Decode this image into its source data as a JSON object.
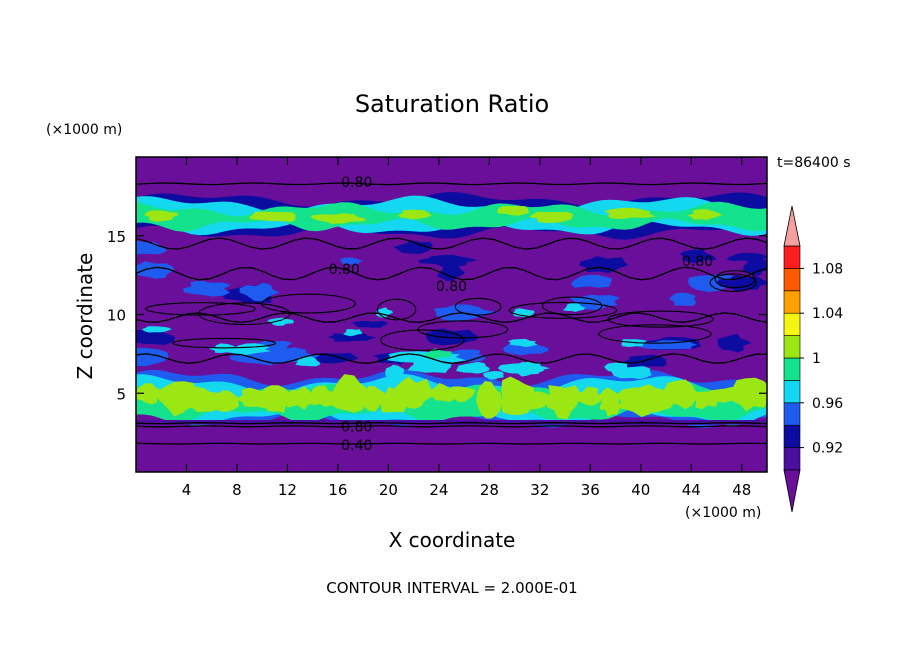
{
  "chart_data": {
    "type": "heatmap",
    "title": "Saturation Ratio",
    "xlabel": "X coordinate",
    "ylabel": "Z coordinate",
    "x_unit": "(×1000 m)",
    "y_unit": "(×1000 m)",
    "time_label": "t=86400 s",
    "footer": "CONTOUR INTERVAL = 2.000E-01",
    "xlim": [
      0,
      50
    ],
    "ylim": [
      0,
      20
    ],
    "x_ticks": [
      4,
      8,
      12,
      16,
      20,
      24,
      28,
      32,
      36,
      40,
      44,
      48
    ],
    "y_ticks": [
      5,
      10,
      15
    ],
    "colorbar": {
      "tick_values": [
        0.92,
        0.96,
        1.0,
        1.04,
        1.08
      ],
      "tick_labels": [
        "0.92",
        "0.96",
        "1",
        "1.04",
        "1.08"
      ],
      "levels": [
        {
          "min": 0.9,
          "max": 0.92,
          "color": "#4b0fa0"
        },
        {
          "min": 0.92,
          "max": 0.94,
          "color": "#0c0ca0"
        },
        {
          "min": 0.94,
          "max": 0.96,
          "color": "#1e5cf0"
        },
        {
          "min": 0.96,
          "max": 0.98,
          "color": "#14d8f0"
        },
        {
          "min": 0.98,
          "max": 1.0,
          "color": "#14e28c"
        },
        {
          "min": 1.0,
          "max": 1.02,
          "color": "#9ce614"
        },
        {
          "min": 1.02,
          "max": 1.04,
          "color": "#f5f50f"
        },
        {
          "min": 1.04,
          "max": 1.06,
          "color": "#ffa000"
        },
        {
          "min": 1.06,
          "max": 1.08,
          "color": "#ff5a00"
        },
        {
          "min": 1.08,
          "max": 1.1,
          "color": "#ff1e1e"
        }
      ],
      "below_color": "#6a0f9a",
      "above_color": "#f5a0a0"
    },
    "contour_labels": [
      {
        "text": "0.80",
        "x": 17.5,
        "y": 18.4
      },
      {
        "text": "0.80",
        "x": 16.5,
        "y": 12.9
      },
      {
        "text": "0.80",
        "x": 25.0,
        "y": 11.8
      },
      {
        "text": "0.80",
        "x": 44.5,
        "y": 13.4
      },
      {
        "text": "0.80",
        "x": 17.5,
        "y": 2.9
      },
      {
        "text": "0.40",
        "x": 17.5,
        "y": 1.7
      }
    ],
    "bands": [
      {
        "level": "bg",
        "z0": 0,
        "z1": 20
      },
      {
        "level": "moist_low",
        "z0": 3.4,
        "z1": 6.2
      },
      {
        "level": "moist_high",
        "z0": 15.3,
        "z1": 17.4
      },
      {
        "level": "mid_patches",
        "z0": 6.5,
        "z1": 14.5
      }
    ]
  }
}
